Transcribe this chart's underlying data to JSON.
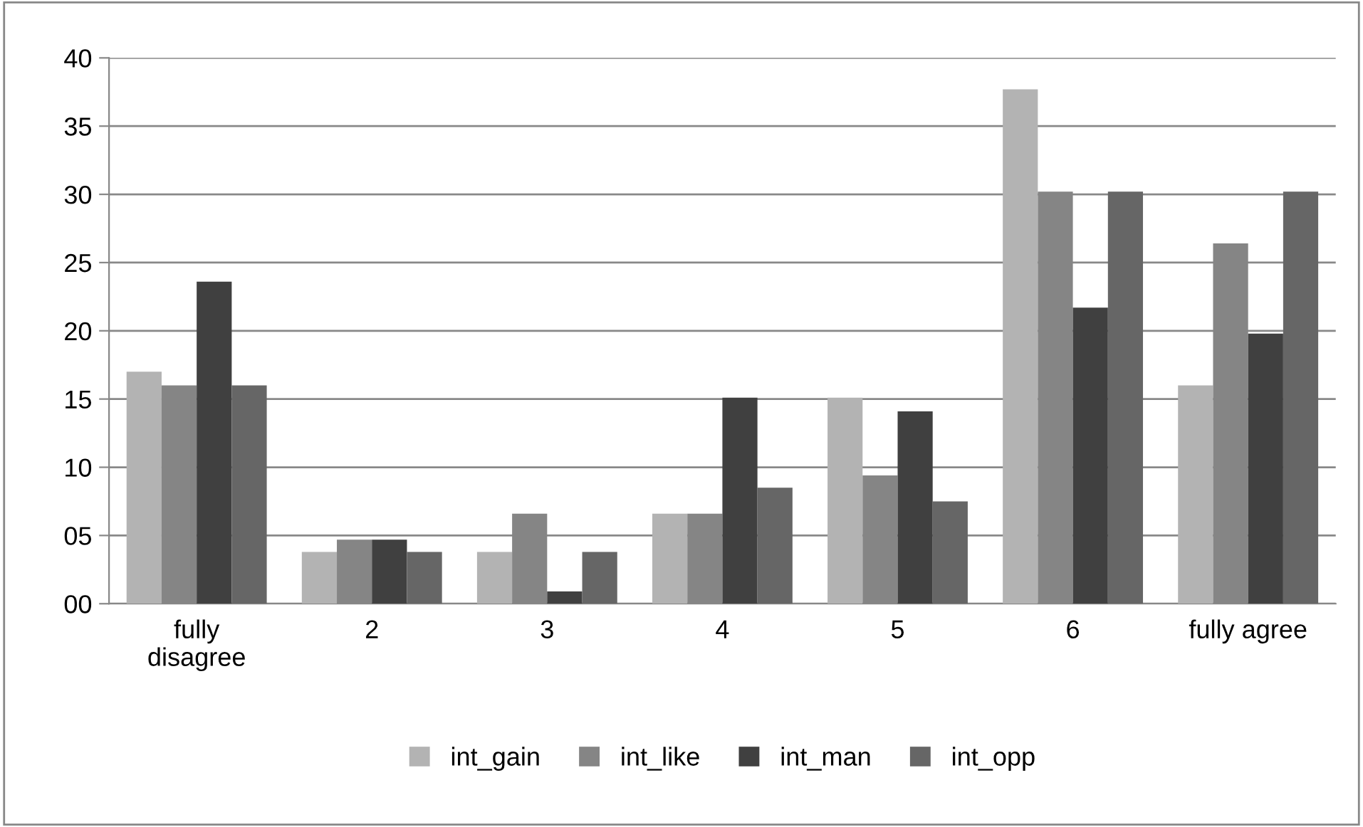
{
  "chart_data": {
    "type": "bar",
    "categories": [
      "fully\ndisagree",
      "2",
      "3",
      "4",
      "5",
      "6",
      "fully agree"
    ],
    "series": [
      {
        "name": "int_gain",
        "color": "#b3b3b3",
        "values": [
          17.0,
          3.8,
          3.8,
          6.6,
          15.1,
          37.7,
          16.0
        ]
      },
      {
        "name": "int_like",
        "color": "#858585",
        "values": [
          16.0,
          4.7,
          6.6,
          6.6,
          9.4,
          30.2,
          26.4
        ]
      },
      {
        "name": "int_man",
        "color": "#404040",
        "values": [
          23.6,
          4.7,
          0.9,
          15.1,
          14.1,
          21.7,
          19.8
        ]
      },
      {
        "name": "int_opp",
        "color": "#666666",
        "values": [
          16.0,
          3.8,
          3.8,
          8.5,
          7.5,
          30.2,
          30.2
        ]
      }
    ],
    "ylim": [
      0,
      40
    ],
    "yticks": [
      {
        "value": 0,
        "label": "00"
      },
      {
        "value": 5,
        "label": "05"
      },
      10,
      15,
      20,
      25,
      30,
      35,
      40
    ],
    "grid": "y",
    "legend": "bottom"
  }
}
